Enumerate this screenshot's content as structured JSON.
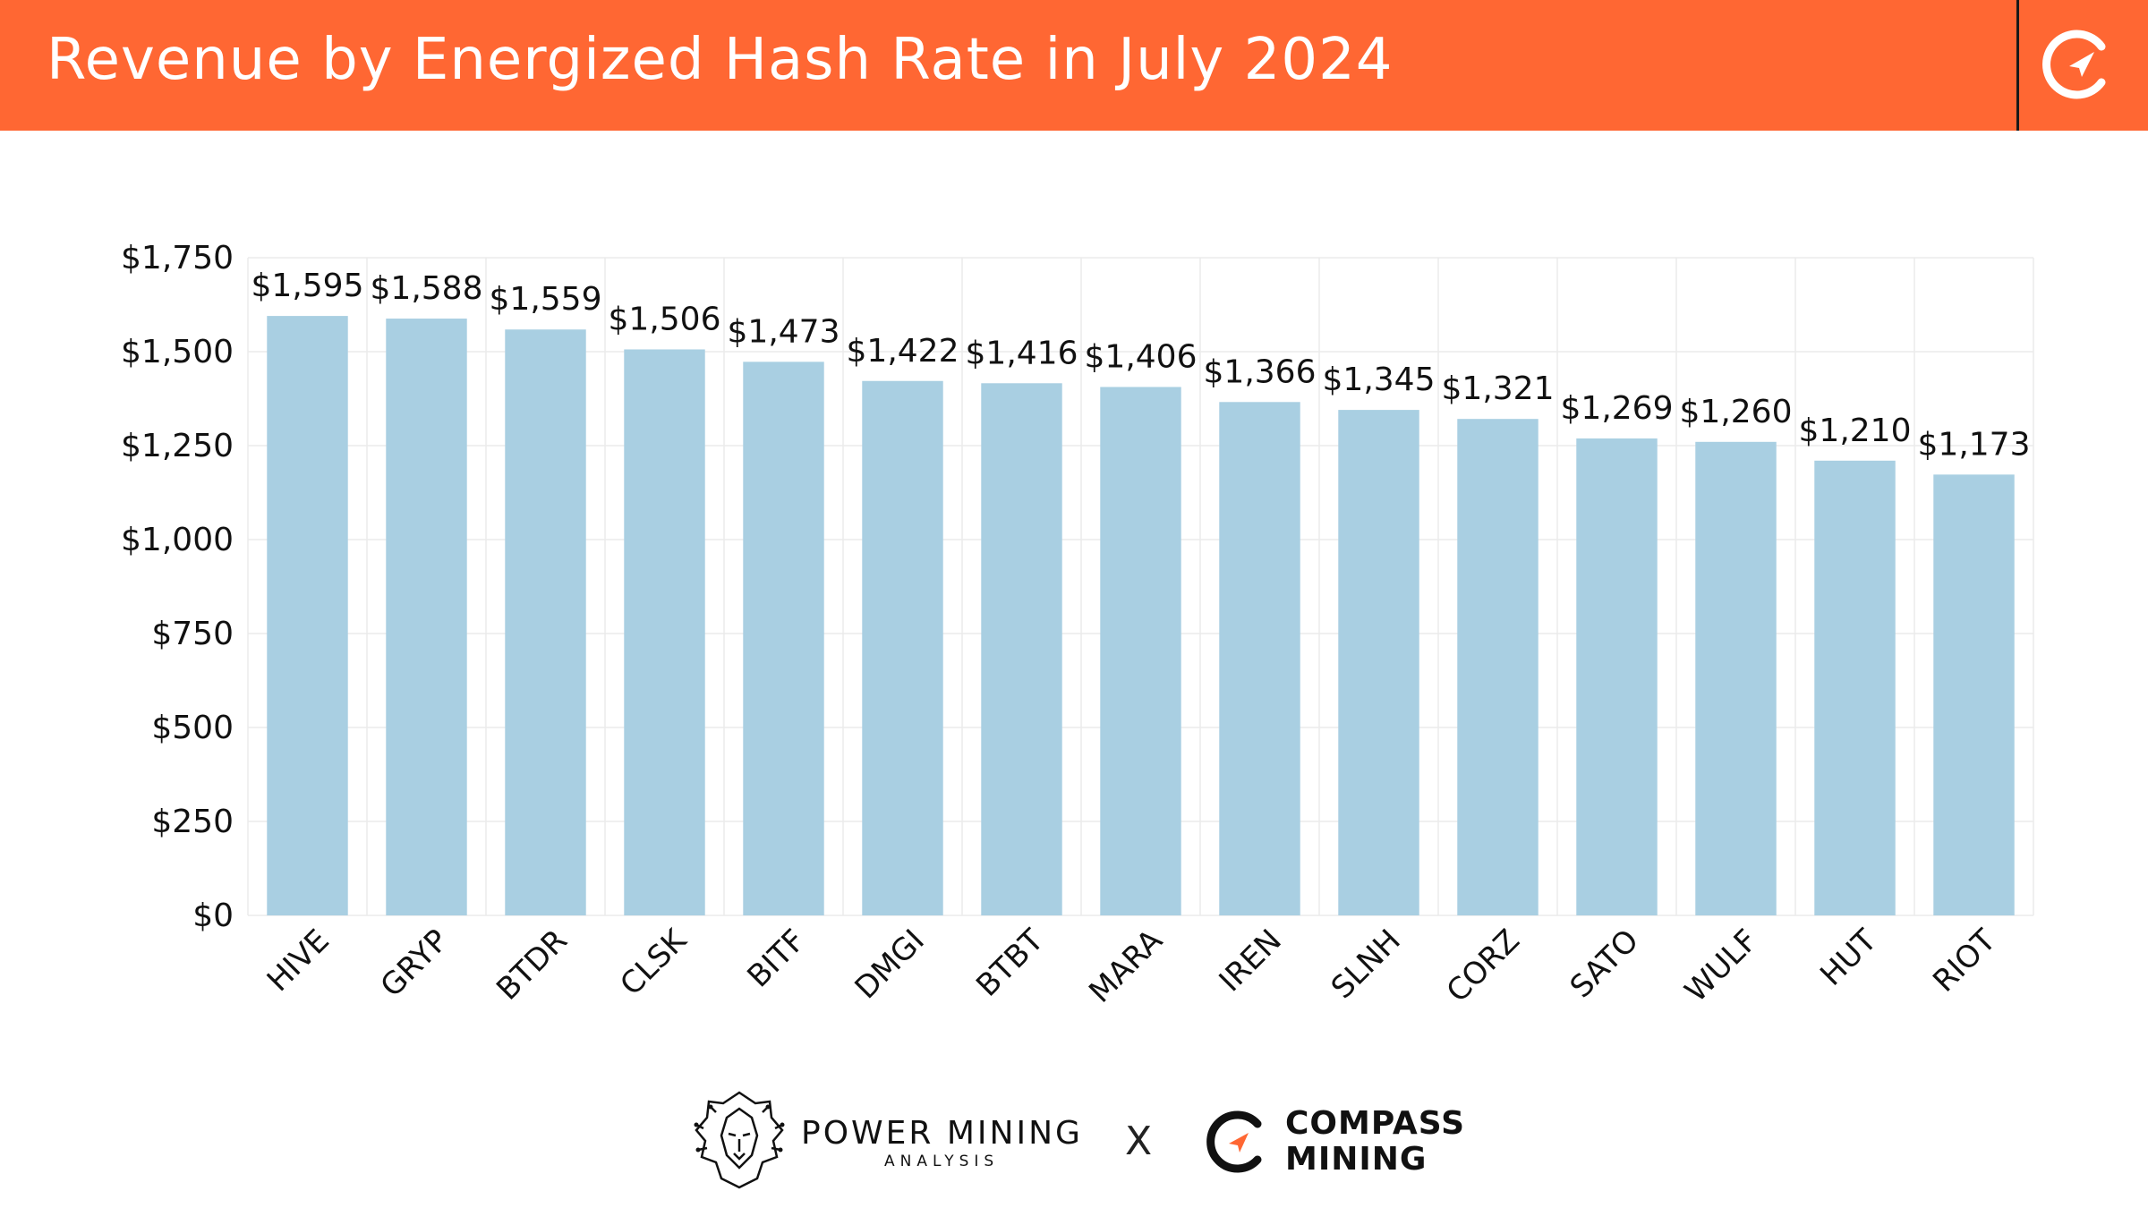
{
  "header": {
    "title": "Revenue by Energized Hash Rate in July 2024"
  },
  "colors": {
    "header_bg": "#FF6733",
    "bar": "#A9CFE2",
    "grid": "#EBEBEB",
    "text": "#111111"
  },
  "chart_data": {
    "type": "bar",
    "title": "Revenue by Energized Hash Rate in July 2024",
    "xlabel": "",
    "ylabel": "",
    "ylim": [
      0,
      1750
    ],
    "yticks": [
      0,
      250,
      500,
      750,
      1000,
      1250,
      1500,
      1750
    ],
    "ytick_labels": [
      "$0",
      "$250",
      "$500",
      "$750",
      "$1,000",
      "$1,250",
      "$1,500",
      "$1,750"
    ],
    "categories": [
      "HIVE",
      "GRYP",
      "BTDR",
      "CLSK",
      "BITF",
      "DMGI",
      "BTBT",
      "MARA",
      "IREN",
      "SLNH",
      "CORZ",
      "SATO",
      "WULF",
      "HUT",
      "RIOT"
    ],
    "values": [
      1595,
      1588,
      1559,
      1506,
      1473,
      1422,
      1416,
      1406,
      1366,
      1345,
      1321,
      1269,
      1260,
      1210,
      1173
    ],
    "value_labels": [
      "$1,595",
      "$1,588",
      "$1,559",
      "$1,506",
      "$1,473",
      "$1,422",
      "$1,416",
      "$1,406",
      "$1,366",
      "$1,345",
      "$1,321",
      "$1,269",
      "$1,260",
      "$1,210",
      "$1,173"
    ],
    "grid": true
  },
  "footer": {
    "power_mining_title": "POWER MINING",
    "power_mining_subtitle": "ANALYSIS",
    "separator": "X",
    "compass_line1": "COMPASS",
    "compass_line2": "MINING"
  }
}
